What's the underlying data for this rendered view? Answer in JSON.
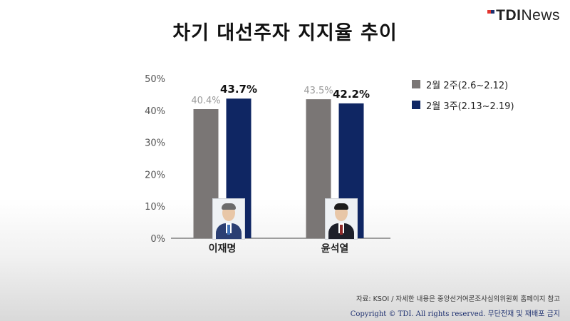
{
  "logo": {
    "bold": "TDI",
    "light": "News"
  },
  "title": "차기 대선주자 지지율 추이",
  "chart_data": {
    "type": "bar",
    "categories": [
      "이재명",
      "윤석열"
    ],
    "series": [
      {
        "name": "2월 2주(2.6~2.12)",
        "values": [
          40.4,
          43.5
        ],
        "labels": [
          "40.4%",
          "43.5%"
        ],
        "color": "#7a7675",
        "label_color": "#9a9a9a"
      },
      {
        "name": "2월 3주(2.13~2.19)",
        "values": [
          43.7,
          42.2
        ],
        "labels": [
          "43.7%",
          "42.2%"
        ],
        "color": "#0f2663",
        "label_color": "#111111"
      }
    ],
    "yticks": [
      "0%",
      "10%",
      "20%",
      "30%",
      "40%",
      "50%"
    ],
    "ylim": [
      0,
      50
    ],
    "grid": false,
    "legend": "right"
  },
  "photos": [
    {
      "name": "lee-jae-myung-photo",
      "hair": "#6b6b6b",
      "suit": "#2b3f73",
      "tie": "#3e6fb5"
    },
    {
      "name": "yoon-suk-yeol-photo",
      "hair": "#1c1c1c",
      "suit": "#1c1f2a",
      "tie": "#8f2a2a"
    }
  ],
  "footer": {
    "source": "자료: KSOI / 자세한 내용은 중앙선거여론조사심의위원회 홈페이지 참고",
    "copyright": "Copyright © TDI. All rights reserved. 무단전재 및 재배포 금지"
  }
}
